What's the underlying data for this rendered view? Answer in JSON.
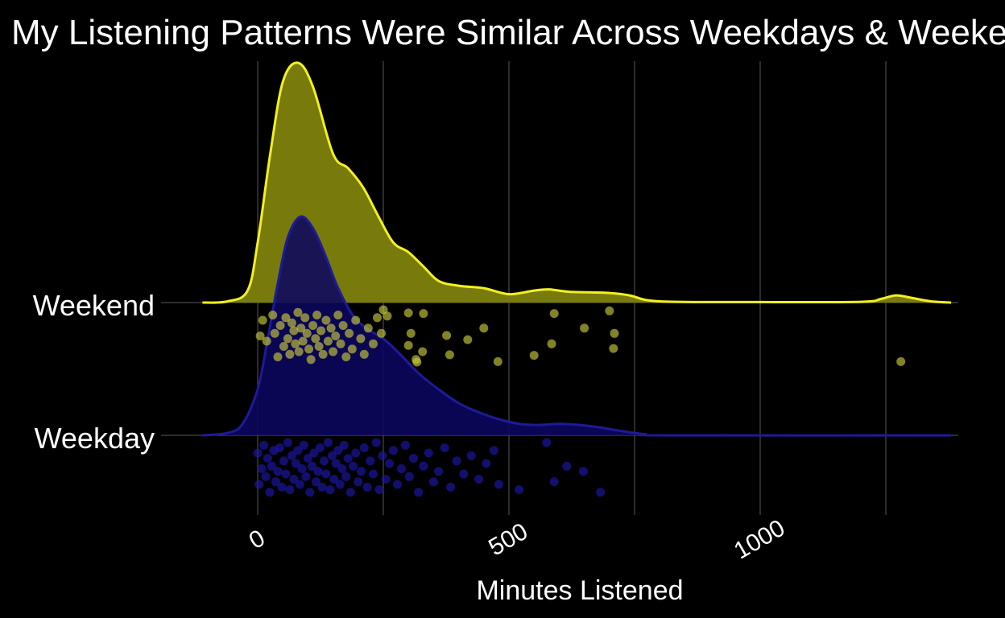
{
  "chart_data": {
    "type": "ridgeline-density-with-jittered-points",
    "title": "My Listening Patterns Were Similar Across Weekdays & Weekends",
    "xlabel": "Minutes Listened",
    "ylabel": "",
    "xlim": [
      -130,
      1390
    ],
    "x_ticks": [
      0,
      500,
      1000
    ],
    "x_tick_labels": [
      "0",
      "500",
      "1000"
    ],
    "x_minor_gridlines": [
      250,
      750,
      1250
    ],
    "grid": true,
    "background_color": "#000000",
    "categories": [
      "Weekend",
      "Weekday"
    ],
    "series": [
      {
        "name": "Weekend",
        "fill_color": "#787a0c",
        "line_color": "#f2f01e",
        "point_color": "#c8c83c",
        "density_points": [
          [
            -110,
            0
          ],
          [
            -60,
            0.005
          ],
          [
            -20,
            0.05
          ],
          [
            0,
            0.25
          ],
          [
            25,
            0.62
          ],
          [
            50,
            0.92
          ],
          [
            80,
            1.0
          ],
          [
            110,
            0.9
          ],
          [
            150,
            0.62
          ],
          [
            180,
            0.56
          ],
          [
            210,
            0.48
          ],
          [
            240,
            0.36
          ],
          [
            270,
            0.25
          ],
          [
            300,
            0.21
          ],
          [
            330,
            0.15
          ],
          [
            360,
            0.09
          ],
          [
            400,
            0.07
          ],
          [
            450,
            0.06
          ],
          [
            500,
            0.035
          ],
          [
            550,
            0.05
          ],
          [
            580,
            0.055
          ],
          [
            620,
            0.045
          ],
          [
            700,
            0.04
          ],
          [
            740,
            0.03
          ],
          [
            800,
            0.005
          ],
          [
            1000,
            0.002
          ],
          [
            1200,
            0.003
          ],
          [
            1240,
            0.015
          ],
          [
            1270,
            0.03
          ],
          [
            1300,
            0.02
          ],
          [
            1340,
            0.005
          ],
          [
            1380,
            0
          ]
        ],
        "points": [
          [
            5,
            0.5
          ],
          [
            10,
            0.2
          ],
          [
            18,
            0.6
          ],
          [
            30,
            0.1
          ],
          [
            34,
            0.45
          ],
          [
            40,
            0.9
          ],
          [
            45,
            0.3
          ],
          [
            52,
            0.7
          ],
          [
            56,
            0.15
          ],
          [
            60,
            0.55
          ],
          [
            64,
            0.85
          ],
          [
            68,
            0.25
          ],
          [
            72,
            0.4
          ],
          [
            75,
            0.65
          ],
          [
            80,
            0.05
          ],
          [
            82,
            0.8
          ],
          [
            86,
            0.35
          ],
          [
            90,
            0.6
          ],
          [
            94,
            0.15
          ],
          [
            98,
            0.45
          ],
          [
            102,
            0.75
          ],
          [
            106,
            0.95
          ],
          [
            110,
            0.3
          ],
          [
            115,
            0.55
          ],
          [
            118,
            0.1
          ],
          [
            122,
            0.7
          ],
          [
            126,
            0.4
          ],
          [
            130,
            0.85
          ],
          [
            136,
            0.2
          ],
          [
            140,
            0.6
          ],
          [
            146,
            0.35
          ],
          [
            150,
            0.8
          ],
          [
            155,
            0.5
          ],
          [
            160,
            0.1
          ],
          [
            165,
            0.65
          ],
          [
            170,
            0.3
          ],
          [
            176,
            0.9
          ],
          [
            182,
            0.45
          ],
          [
            188,
            0.75
          ],
          [
            195,
            0.2
          ],
          [
            205,
            0.55
          ],
          [
            212,
            0.85
          ],
          [
            220,
            0.35
          ],
          [
            230,
            0.65
          ],
          [
            238,
            0.15
          ],
          [
            246,
            0.45
          ],
          [
            250,
            0.0
          ],
          [
            258,
            0.12
          ],
          [
            300,
            0.06
          ],
          [
            305,
            0.45
          ],
          [
            300,
            0.68
          ],
          [
            315,
            0.95
          ],
          [
            317,
            1.0
          ],
          [
            328,
            0.8
          ],
          [
            330,
            0.07
          ],
          [
            376,
            0.49
          ],
          [
            382,
            0.86
          ],
          [
            418,
            0.57
          ],
          [
            450,
            0.35
          ],
          [
            478,
            0.99
          ],
          [
            550,
            0.87
          ],
          [
            585,
            0.65
          ],
          [
            590,
            0.07
          ],
          [
            650,
            0.35
          ],
          [
            710,
            0.45
          ],
          [
            708,
            0.74
          ],
          [
            700,
            0.02
          ],
          [
            1280,
            0.99
          ]
        ]
      },
      {
        "name": "Weekday",
        "fill_color": "#0b0760",
        "line_color": "#1e1a9a",
        "point_color": "#1d17aa",
        "density_points": [
          [
            -110,
            0
          ],
          [
            -60,
            0.01
          ],
          [
            -30,
            0.05
          ],
          [
            0,
            0.2
          ],
          [
            20,
            0.42
          ],
          [
            40,
            0.66
          ],
          [
            60,
            0.86
          ],
          [
            85,
            0.95
          ],
          [
            110,
            0.9
          ],
          [
            135,
            0.78
          ],
          [
            160,
            0.64
          ],
          [
            190,
            0.52
          ],
          [
            220,
            0.46
          ],
          [
            250,
            0.42
          ],
          [
            280,
            0.36
          ],
          [
            320,
            0.27
          ],
          [
            360,
            0.2
          ],
          [
            400,
            0.14
          ],
          [
            440,
            0.1
          ],
          [
            480,
            0.07
          ],
          [
            520,
            0.05
          ],
          [
            560,
            0.045
          ],
          [
            600,
            0.05
          ],
          [
            640,
            0.045
          ],
          [
            680,
            0.035
          ],
          [
            720,
            0.02
          ],
          [
            770,
            0.005
          ],
          [
            820,
            0
          ],
          [
            1380,
            0
          ]
        ],
        "points": [
          [
            0,
            0.2
          ],
          [
            3,
            0.8
          ],
          [
            8,
            0.5
          ],
          [
            12,
            0.05
          ],
          [
            16,
            0.65
          ],
          [
            20,
            0.3
          ],
          [
            24,
            0.95
          ],
          [
            28,
            0.45
          ],
          [
            32,
            0.15
          ],
          [
            36,
            0.75
          ],
          [
            40,
            0.55
          ],
          [
            44,
            0.1
          ],
          [
            48,
            0.85
          ],
          [
            52,
            0.35
          ],
          [
            56,
            0.6
          ],
          [
            60,
            0.0
          ],
          [
            64,
            0.9
          ],
          [
            68,
            0.25
          ],
          [
            72,
            0.7
          ],
          [
            76,
            0.4
          ],
          [
            80,
            0.15
          ],
          [
            84,
            0.8
          ],
          [
            88,
            0.5
          ],
          [
            92,
            0.05
          ],
          [
            96,
            0.65
          ],
          [
            100,
            0.3
          ],
          [
            104,
            0.95
          ],
          [
            108,
            0.45
          ],
          [
            112,
            0.2
          ],
          [
            116,
            0.75
          ],
          [
            120,
            0.55
          ],
          [
            124,
            0.1
          ],
          [
            128,
            0.85
          ],
          [
            132,
            0.35
          ],
          [
            136,
            0.6
          ],
          [
            140,
            0.0
          ],
          [
            144,
            0.9
          ],
          [
            148,
            0.25
          ],
          [
            152,
            0.7
          ],
          [
            156,
            0.4
          ],
          [
            160,
            0.15
          ],
          [
            164,
            0.8
          ],
          [
            168,
            0.5
          ],
          [
            172,
            0.05
          ],
          [
            176,
            0.65
          ],
          [
            180,
            0.3
          ],
          [
            185,
            0.95
          ],
          [
            190,
            0.45
          ],
          [
            195,
            0.2
          ],
          [
            200,
            0.75
          ],
          [
            206,
            0.55
          ],
          [
            212,
            0.1
          ],
          [
            218,
            0.85
          ],
          [
            224,
            0.35
          ],
          [
            230,
            0.6
          ],
          [
            236,
            0.0
          ],
          [
            242,
            0.9
          ],
          [
            248,
            0.25
          ],
          [
            255,
            0.7
          ],
          [
            262,
            0.4
          ],
          [
            270,
            0.15
          ],
          [
            278,
            0.8
          ],
          [
            286,
            0.5
          ],
          [
            294,
            0.05
          ],
          [
            302,
            0.65
          ],
          [
            310,
            0.3
          ],
          [
            320,
            0.95
          ],
          [
            330,
            0.45
          ],
          [
            340,
            0.2
          ],
          [
            350,
            0.75
          ],
          [
            360,
            0.55
          ],
          [
            372,
            0.1
          ],
          [
            384,
            0.85
          ],
          [
            396,
            0.35
          ],
          [
            410,
            0.6
          ],
          [
            425,
            0.25
          ],
          [
            440,
            0.7
          ],
          [
            455,
            0.4
          ],
          [
            470,
            0.15
          ],
          [
            480,
            0.8
          ],
          [
            520,
            0.9
          ],
          [
            575,
            0.0
          ],
          [
            590,
            0.75
          ],
          [
            615,
            0.45
          ],
          [
            648,
            0.55
          ],
          [
            682,
            0.95
          ]
        ]
      }
    ]
  }
}
